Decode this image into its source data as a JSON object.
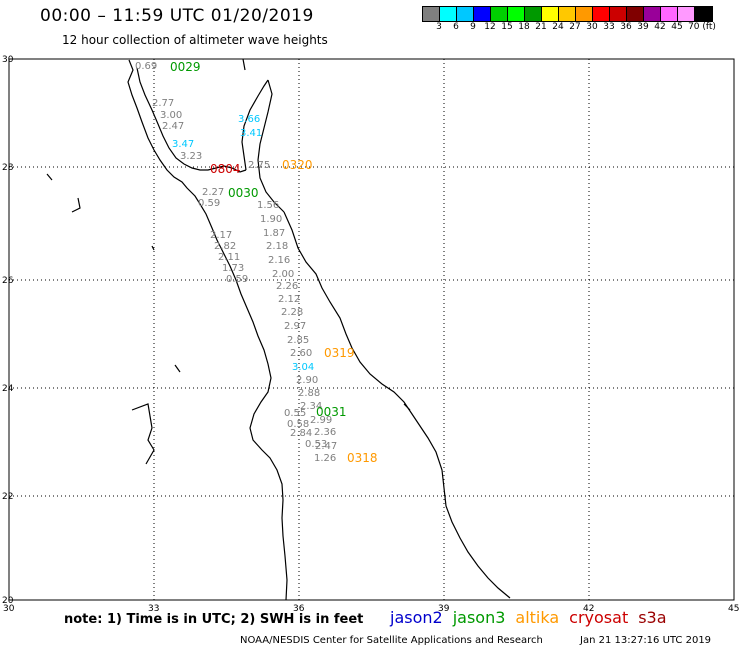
{
  "header": {
    "title": "00:00 – 11:59 UTC 01/20/2019",
    "subtitle": "12 hour collection of altimeter wave heights"
  },
  "colorscale": {
    "labels": [
      "3",
      "6",
      "9",
      "12",
      "15",
      "18",
      "21",
      "24",
      "27",
      "30",
      "33",
      "36",
      "39",
      "42",
      "45",
      "70 (ft)"
    ],
    "colors": [
      "#7f7f7f",
      "#00ffff",
      "#00c8ff",
      "#0000ff",
      "#00d000",
      "#00ff00",
      "#009900",
      "#ffff00",
      "#ffc800",
      "#ff9900",
      "#ff0000",
      "#cc0000",
      "#800000",
      "#990099",
      "#ff66ff",
      "#ff99ff",
      "#000000"
    ]
  },
  "axes": {
    "lat_labels": [
      "30",
      "28",
      "26",
      "24",
      "22",
      "20"
    ],
    "lon_labels": [
      "30",
      "33",
      "36",
      "39",
      "42",
      "45"
    ]
  },
  "passes": [
    {
      "label": "0029",
      "color": "#009900"
    },
    {
      "label": "0320",
      "color": "#ff9900"
    },
    {
      "label": "0030",
      "color": "#009900"
    },
    {
      "label": "0319",
      "color": "#ff9900"
    },
    {
      "label": "0031",
      "color": "#009900"
    },
    {
      "label": "0318",
      "color": "#ff9900"
    },
    {
      "label": "0804",
      "color": "#cc0000"
    }
  ],
  "wave_values": [
    {
      "text": "0.69",
      "color": "#7f7f7f"
    },
    {
      "text": "2.77",
      "color": "#7f7f7f"
    },
    {
      "text": "3.00",
      "color": "#7f7f7f"
    },
    {
      "text": "2.47",
      "color": "#7f7f7f"
    },
    {
      "text": "3.66",
      "color": "#00c8ff"
    },
    {
      "text": "3.41",
      "color": "#00c8ff"
    },
    {
      "text": "3.47",
      "color": "#00c8ff"
    },
    {
      "text": "3.23",
      "color": "#7f7f7f"
    },
    {
      "text": "2.75",
      "color": "#7f7f7f"
    },
    {
      "text": "2.27",
      "color": "#7f7f7f"
    },
    {
      "text": "0.59",
      "color": "#7f7f7f"
    },
    {
      "text": "1.56",
      "color": "#7f7f7f"
    },
    {
      "text": "1.90",
      "color": "#7f7f7f"
    },
    {
      "text": "2.17",
      "color": "#7f7f7f"
    },
    {
      "text": "1.87",
      "color": "#7f7f7f"
    },
    {
      "text": "2.82",
      "color": "#7f7f7f"
    },
    {
      "text": "2.18",
      "color": "#7f7f7f"
    },
    {
      "text": "2.11",
      "color": "#7f7f7f"
    },
    {
      "text": "2.16",
      "color": "#7f7f7f"
    },
    {
      "text": "1.73",
      "color": "#7f7f7f"
    },
    {
      "text": "2.00",
      "color": "#7f7f7f"
    },
    {
      "text": "0.59",
      "color": "#7f7f7f"
    },
    {
      "text": "2.26",
      "color": "#7f7f7f"
    },
    {
      "text": "2.12",
      "color": "#7f7f7f"
    },
    {
      "text": "2.28",
      "color": "#7f7f7f"
    },
    {
      "text": "2.97",
      "color": "#7f7f7f"
    },
    {
      "text": "2.85",
      "color": "#7f7f7f"
    },
    {
      "text": "2.60",
      "color": "#7f7f7f"
    },
    {
      "text": "3.04",
      "color": "#00c8ff"
    },
    {
      "text": "2.90",
      "color": "#7f7f7f"
    },
    {
      "text": "2.88",
      "color": "#7f7f7f"
    },
    {
      "text": "2.34",
      "color": "#7f7f7f"
    },
    {
      "text": "0.55",
      "color": "#7f7f7f"
    },
    {
      "text": "2.99",
      "color": "#7f7f7f"
    },
    {
      "text": "0.58",
      "color": "#7f7f7f"
    },
    {
      "text": "2.84",
      "color": "#7f7f7f"
    },
    {
      "text": "2.36",
      "color": "#7f7f7f"
    },
    {
      "text": "0.53",
      "color": "#7f7f7f"
    },
    {
      "text": "2.47",
      "color": "#7f7f7f"
    },
    {
      "text": "1.26",
      "color": "#7f7f7f"
    }
  ],
  "footer": {
    "note": "note:  1) Time is in UTC;  2) SWH is in feet",
    "satellites": [
      {
        "name": "jason2",
        "color": "#0000cc"
      },
      {
        "name": "jason3",
        "color": "#009900"
      },
      {
        "name": "altika",
        "color": "#ff9900"
      },
      {
        "name": "cryosat",
        "color": "#cc0000"
      },
      {
        "name": "s3a",
        "color": "#990000"
      }
    ],
    "credit": "NOAA/NESDIS Center for Satellite Applications and Research",
    "timestamp": "Jan 21 13:27:16 UTC 2019"
  }
}
